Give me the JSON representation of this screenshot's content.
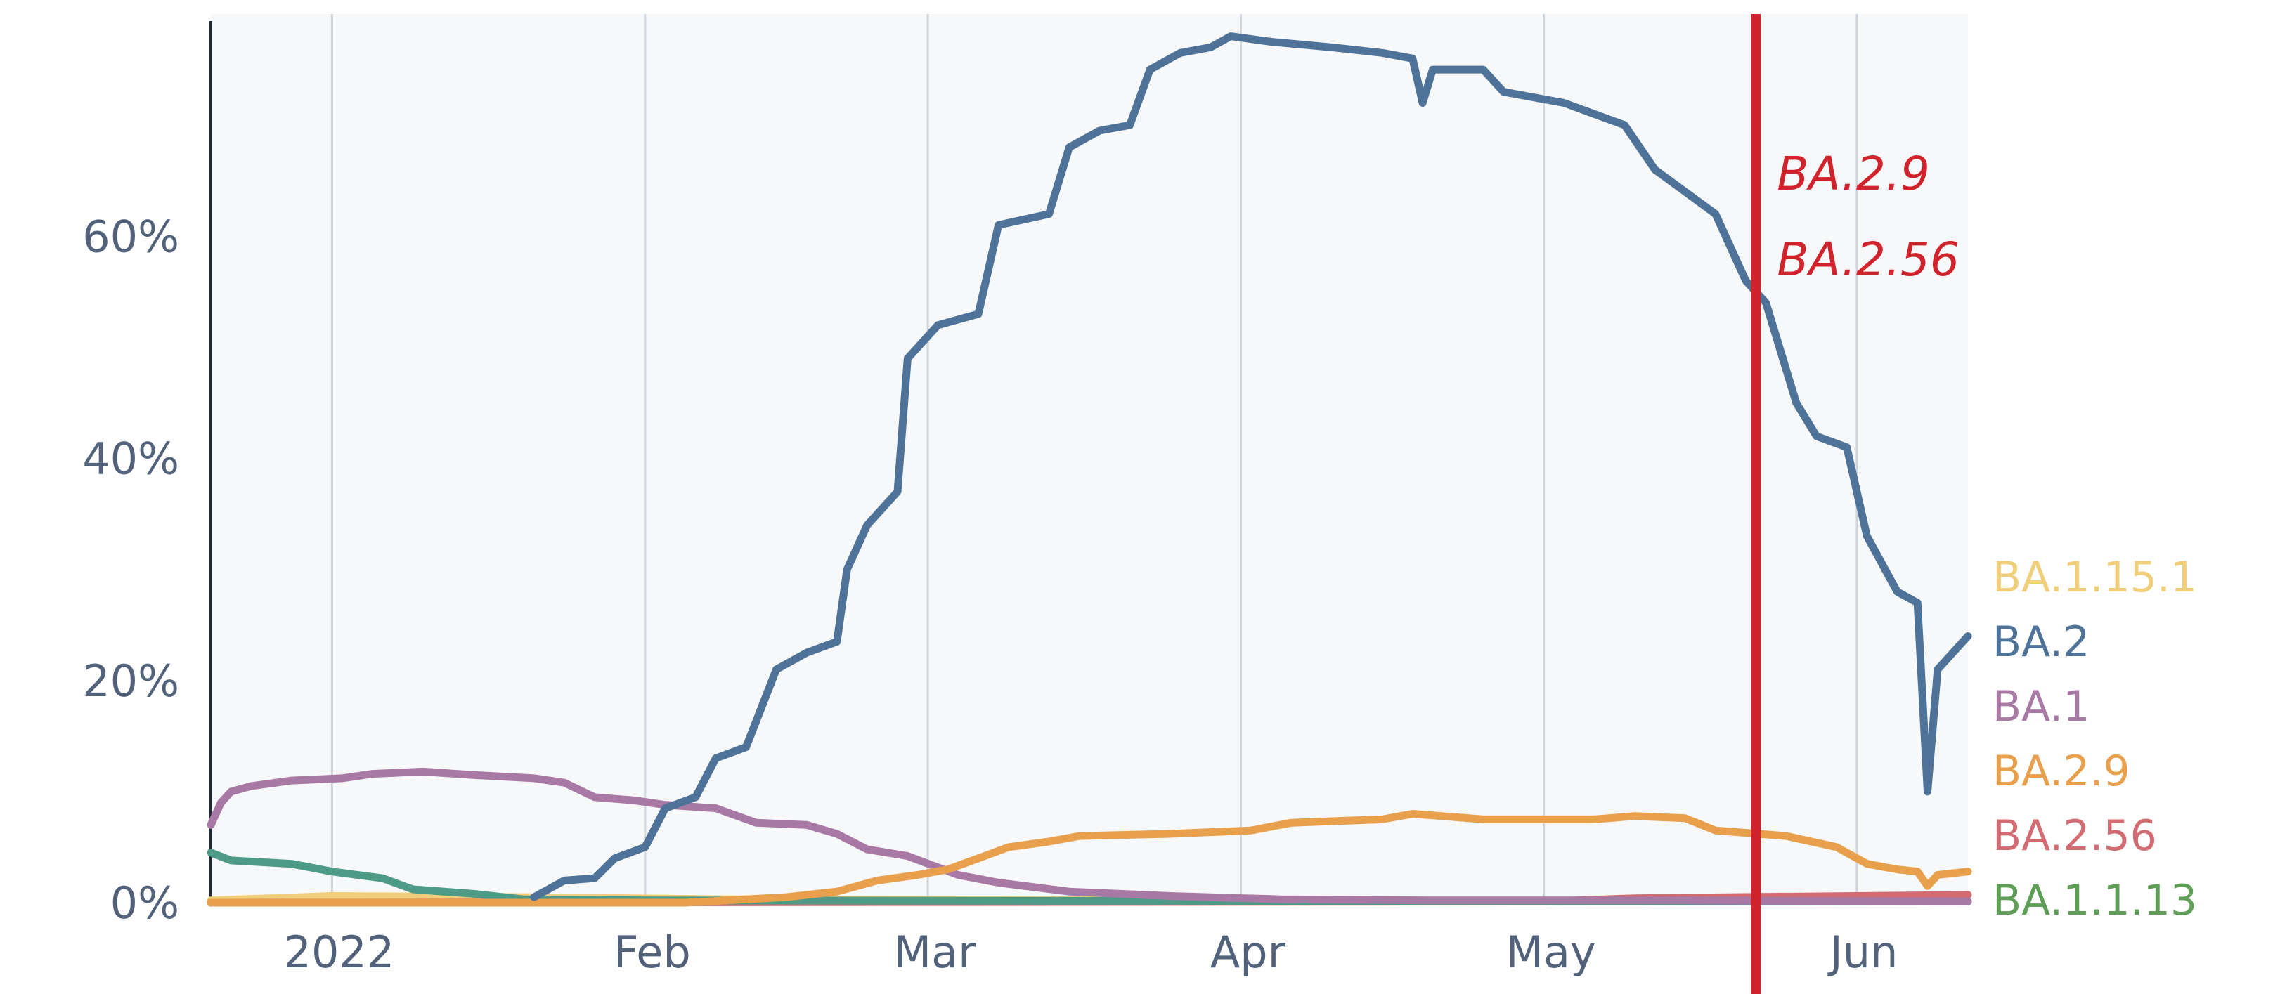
{
  "chart_data": {
    "type": "line",
    "title": "",
    "xlabel": "",
    "ylabel": "",
    "x_range": [
      "2021-12-20",
      "2022-06-12"
    ],
    "ylim": [
      0,
      80
    ],
    "y_unit": "%",
    "y_ticks": [
      0,
      20,
      40,
      60
    ],
    "y_tick_labels": [
      "0%",
      "20%",
      "40%",
      "60%"
    ],
    "x_ticks": [
      "2022-01-01",
      "2022-02-01",
      "2022-03-01",
      "2022-04-01",
      "2022-05-01",
      "2022-06-01"
    ],
    "x_tick_labels": [
      "2022",
      "Feb",
      "Mar",
      "Apr",
      "May",
      "Jun"
    ],
    "grid": "vertical",
    "background": "#f6f8fa",
    "series": [
      {
        "name": "BA.2",
        "color": "#4f7398",
        "points": [
          [
            "2022-01-21",
            0.5
          ],
          [
            "2022-01-24",
            2
          ],
          [
            "2022-01-27",
            2.2
          ],
          [
            "2022-01-29",
            4
          ],
          [
            "2022-02-01",
            5
          ],
          [
            "2022-02-03",
            8.5
          ],
          [
            "2022-02-06",
            9.5
          ],
          [
            "2022-02-08",
            13
          ],
          [
            "2022-02-11",
            14
          ],
          [
            "2022-02-14",
            21
          ],
          [
            "2022-02-17",
            22.5
          ],
          [
            "2022-02-20",
            23.5
          ],
          [
            "2022-02-21",
            30
          ],
          [
            "2022-02-23",
            34
          ],
          [
            "2022-02-26",
            37
          ],
          [
            "2022-02-27",
            49
          ],
          [
            "2022-03-02",
            52
          ],
          [
            "2022-03-06",
            53
          ],
          [
            "2022-03-08",
            61
          ],
          [
            "2022-03-13",
            62
          ],
          [
            "2022-03-15",
            68
          ],
          [
            "2022-03-18",
            69.5
          ],
          [
            "2022-03-21",
            70
          ],
          [
            "2022-03-23",
            75
          ],
          [
            "2022-03-26",
            76.5
          ],
          [
            "2022-03-29",
            77
          ],
          [
            "2022-03-31",
            78
          ],
          [
            "2022-04-04",
            77.5
          ],
          [
            "2022-04-10",
            77
          ],
          [
            "2022-04-15",
            76.5
          ],
          [
            "2022-04-18",
            76
          ],
          [
            "2022-04-19",
            72
          ],
          [
            "2022-04-20",
            75
          ],
          [
            "2022-04-25",
            75
          ],
          [
            "2022-04-27",
            73
          ],
          [
            "2022-05-03",
            72
          ],
          [
            "2022-05-06",
            71
          ],
          [
            "2022-05-09",
            70
          ],
          [
            "2022-05-12",
            66
          ],
          [
            "2022-05-15",
            64
          ],
          [
            "2022-05-18",
            62
          ],
          [
            "2022-05-20",
            58
          ],
          [
            "2022-05-21",
            56
          ],
          [
            "2022-05-23",
            54
          ],
          [
            "2022-05-26",
            45
          ],
          [
            "2022-05-28",
            42
          ],
          [
            "2022-05-31",
            41
          ],
          [
            "2022-06-02",
            33
          ],
          [
            "2022-06-05",
            28
          ],
          [
            "2022-06-07",
            27
          ],
          [
            "2022-06-08",
            10
          ],
          [
            "2022-06-09",
            21
          ],
          [
            "2022-06-10",
            22
          ],
          [
            "2022-06-12",
            24
          ]
        ]
      },
      {
        "name": "BA.1",
        "color": "#a979a6",
        "points": [
          [
            "2021-12-20",
            7
          ],
          [
            "2021-12-21",
            9
          ],
          [
            "2021-12-22",
            10
          ],
          [
            "2021-12-24",
            10.5
          ],
          [
            "2021-12-28",
            11
          ],
          [
            "2022-01-02",
            11.2
          ],
          [
            "2022-01-05",
            11.6
          ],
          [
            "2022-01-10",
            11.8
          ],
          [
            "2022-01-15",
            11.5
          ],
          [
            "2022-01-21",
            11.2
          ],
          [
            "2022-01-24",
            10.8
          ],
          [
            "2022-01-27",
            9.5
          ],
          [
            "2022-01-31",
            9.2
          ],
          [
            "2022-02-03",
            8.8
          ],
          [
            "2022-02-08",
            8.5
          ],
          [
            "2022-02-12",
            7.2
          ],
          [
            "2022-02-17",
            7.0
          ],
          [
            "2022-02-20",
            6.2
          ],
          [
            "2022-02-23",
            4.8
          ],
          [
            "2022-02-27",
            4.2
          ],
          [
            "2022-03-04",
            2.5
          ],
          [
            "2022-03-08",
            1.8
          ],
          [
            "2022-03-15",
            1.0
          ],
          [
            "2022-03-25",
            0.6
          ],
          [
            "2022-04-05",
            0.3
          ],
          [
            "2022-04-20",
            0.2
          ],
          [
            "2022-05-15",
            0.2
          ],
          [
            "2022-06-12",
            0.1
          ]
        ]
      },
      {
        "name": "BA.2.9",
        "color": "#e8a04d",
        "points": [
          [
            "2021-12-20",
            0
          ],
          [
            "2022-02-05",
            0
          ],
          [
            "2022-02-15",
            0.5
          ],
          [
            "2022-02-20",
            1.0
          ],
          [
            "2022-02-24",
            2.0
          ],
          [
            "2022-02-28",
            2.5
          ],
          [
            "2022-03-03",
            3.0
          ],
          [
            "2022-03-06",
            4.0
          ],
          [
            "2022-03-09",
            5.0
          ],
          [
            "2022-03-13",
            5.5
          ],
          [
            "2022-03-16",
            6.0
          ],
          [
            "2022-03-25",
            6.2
          ],
          [
            "2022-04-02",
            6.5
          ],
          [
            "2022-04-06",
            7.2
          ],
          [
            "2022-04-15",
            7.5
          ],
          [
            "2022-04-18",
            8.0
          ],
          [
            "2022-04-25",
            7.5
          ],
          [
            "2022-05-06",
            7.5
          ],
          [
            "2022-05-10",
            7.8
          ],
          [
            "2022-05-15",
            7.6
          ],
          [
            "2022-05-18",
            6.5
          ],
          [
            "2022-05-25",
            6.0
          ],
          [
            "2022-05-30",
            5.0
          ],
          [
            "2022-06-02",
            3.5
          ],
          [
            "2022-06-05",
            3.0
          ],
          [
            "2022-06-07",
            2.8
          ],
          [
            "2022-06-08",
            1.5
          ],
          [
            "2022-06-09",
            2.5
          ],
          [
            "2022-06-12",
            2.8
          ]
        ]
      },
      {
        "name": "BA.1.1.13",
        "color": "#4d9a87",
        "points": [
          [
            "2021-12-20",
            4.5
          ],
          [
            "2021-12-22",
            3.8
          ],
          [
            "2021-12-28",
            3.5
          ],
          [
            "2022-01-01",
            2.8
          ],
          [
            "2022-01-06",
            2.2
          ],
          [
            "2022-01-09",
            1.2
          ],
          [
            "2022-01-15",
            0.8
          ],
          [
            "2022-01-20",
            0.3
          ],
          [
            "2022-02-01",
            0.2
          ],
          [
            "2022-06-12",
            0.1
          ]
        ]
      },
      {
        "name": "BA.1.15.1",
        "color": "#f0ce7a",
        "points": [
          [
            "2021-12-20",
            0.2
          ],
          [
            "2022-01-01",
            0.6
          ],
          [
            "2022-01-20",
            0.5
          ],
          [
            "2022-02-10",
            0.3
          ],
          [
            "2022-06-12",
            0.1
          ]
        ]
      },
      {
        "name": "BA.2.56",
        "color": "#d26b72",
        "points": [
          [
            "2021-12-20",
            0
          ],
          [
            "2022-05-01",
            0.1
          ],
          [
            "2022-05-10",
            0.4
          ],
          [
            "2022-05-20",
            0.5
          ],
          [
            "2022-06-01",
            0.6
          ],
          [
            "2022-06-12",
            0.7
          ]
        ]
      }
    ],
    "legend": {
      "placement": "right",
      "entries": [
        {
          "label": "BA.1.15.1",
          "color": "#f0ce7a"
        },
        {
          "label": "BA.2",
          "color": "#4f7398"
        },
        {
          "label": "BA.1",
          "color": "#a979a6"
        },
        {
          "label": "BA.2.9",
          "color": "#e8a04d"
        },
        {
          "label": "BA.2.56",
          "color": "#d26b72"
        },
        {
          "label": "BA.1.1.13",
          "color": "#5f9e57"
        }
      ]
    },
    "annotation": {
      "date": "2022-05-22",
      "color": "#d0232b",
      "labels": [
        "BA.2.9",
        "BA.2.56"
      ]
    }
  }
}
